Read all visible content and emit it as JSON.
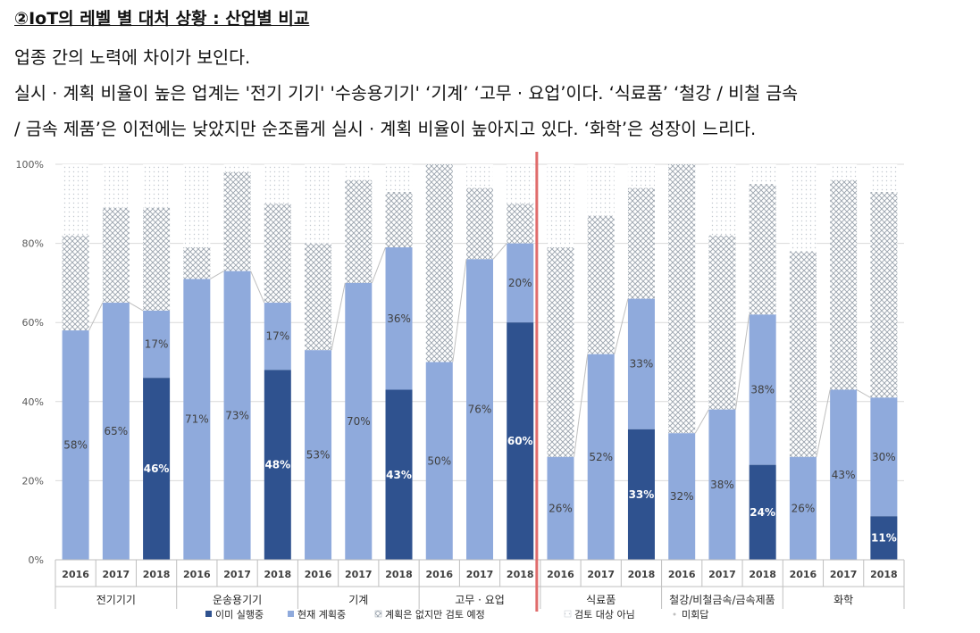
{
  "header": {
    "title": "②IoT의 레벨 별 대처 상황 : 산업별 비교",
    "line1": "업종 간의 노력에 차이가 보인다.",
    "line2": "실시 · 계획 비율이 높은 업계는 '전기 기기' '수송용기기' ‘기계’ ‘고무 · 요업’이다. ‘식료품’ ‘철강 / 비철 금속",
    "line3": "/ 금속 제품’은 이전에는 낮았지만 순조롭게 실시 · 계획 비율이 높아지고 있다. ‘화학’은 성장이 느리다."
  },
  "chart_data": {
    "type": "bar",
    "stacked": true,
    "ylim": [
      0,
      100
    ],
    "yticks": [
      "0%",
      "20%",
      "40%",
      "60%",
      "80%",
      "100%"
    ],
    "groups": [
      {
        "label": "전기기기",
        "years": [
          "2016",
          "2017",
          "2018"
        ],
        "implemented": [
          0,
          0,
          46
        ],
        "planned": [
          58,
          65,
          17
        ],
        "considering": [
          24,
          24,
          26
        ],
        "labels_impl": [
          "",
          "",
          "46%"
        ],
        "labels_plan": [
          "58%",
          "65%",
          "17%"
        ]
      },
      {
        "label": "운송용기기",
        "years": [
          "2016",
          "2017",
          "2018"
        ],
        "implemented": [
          0,
          0,
          48
        ],
        "planned": [
          71,
          73,
          17
        ],
        "considering": [
          8,
          25,
          25
        ],
        "labels_impl": [
          "",
          "",
          "48%"
        ],
        "labels_plan": [
          "71%",
          "73%",
          "17%"
        ]
      },
      {
        "label": "기계",
        "years": [
          "2016",
          "2017",
          "2018"
        ],
        "implemented": [
          0,
          0,
          43
        ],
        "planned": [
          53,
          70,
          36
        ],
        "considering": [
          27,
          26,
          14
        ],
        "labels_impl": [
          "",
          "",
          "43%"
        ],
        "labels_plan": [
          "53%",
          "70%",
          "36%"
        ]
      },
      {
        "label": "고무 · 요업",
        "years": [
          "2016",
          "2017",
          "2018"
        ],
        "implemented": [
          0,
          0,
          60
        ],
        "planned": [
          50,
          76,
          20
        ],
        "considering": [
          50,
          18,
          10
        ],
        "labels_impl": [
          "",
          "",
          "60%"
        ],
        "labels_plan": [
          "50%",
          "76%",
          "20%"
        ]
      },
      {
        "label": "식료품",
        "years": [
          "2016",
          "2017",
          "2018"
        ],
        "implemented": [
          0,
          0,
          33
        ],
        "planned": [
          26,
          52,
          33
        ],
        "considering": [
          53,
          35,
          28
        ],
        "labels_impl": [
          "",
          "",
          "33%"
        ],
        "labels_plan": [
          "26%",
          "52%",
          "33%"
        ]
      },
      {
        "label": "철강/비철금속/금속제품",
        "years": [
          "2016",
          "2017",
          "2018"
        ],
        "implemented": [
          0,
          0,
          24
        ],
        "planned": [
          32,
          38,
          38
        ],
        "considering": [
          68,
          44,
          33
        ],
        "labels_impl": [
          "",
          "",
          "24%"
        ],
        "labels_plan": [
          "32%",
          "38%",
          "38%"
        ]
      },
      {
        "label": "화학",
        "years": [
          "2016",
          "2017",
          "2018"
        ],
        "implemented": [
          0,
          0,
          11
        ],
        "planned": [
          26,
          43,
          30
        ],
        "considering": [
          52,
          53,
          52
        ],
        "labels_impl": [
          "",
          "",
          "11%"
        ],
        "labels_plan": [
          "26%",
          "43%",
          "30%"
        ]
      }
    ],
    "legend": [
      {
        "name": "이미 실행중",
        "color": "#2f528f",
        "marker": "■"
      },
      {
        "name": "현재 계획중",
        "color": "#8faadc",
        "marker": "■"
      },
      {
        "name": "계획은 없지만 검토 예정",
        "color": "#9aa3ad",
        "marker": "▨"
      },
      {
        "name": "검토 대상 아님",
        "color": "#c9cfd6",
        "marker": "▨"
      },
      {
        "name": "미회답",
        "color": "#d9d9d9",
        "marker": "·"
      }
    ],
    "legend_position": "bottom",
    "colors": {
      "implemented": "#2f528f",
      "planned": "#8faadc",
      "considering_pattern": "#9aa3ad",
      "not_considered_pattern": "#d9dde2",
      "divider": "#e06c6c"
    }
  }
}
